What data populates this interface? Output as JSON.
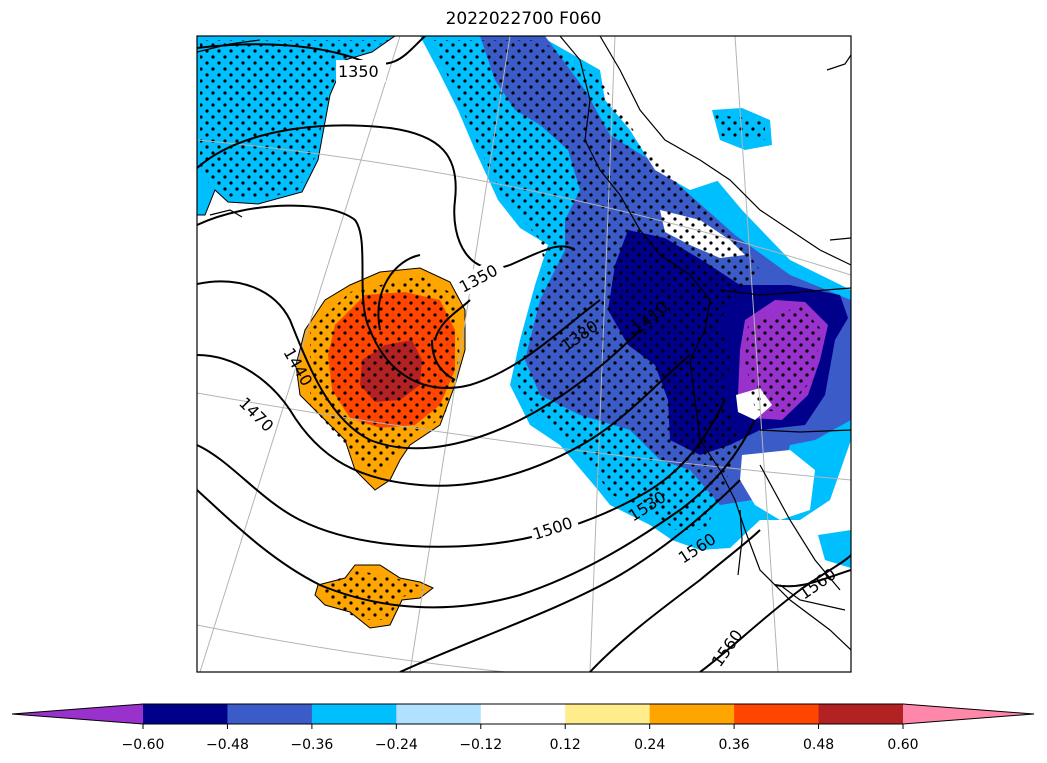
{
  "title": "2022022700 F060",
  "contour_labels": [
    "1350",
    "1350",
    "1380",
    "1410",
    "1440",
    "1470",
    "1500",
    "1530",
    "1560",
    "1560",
    "1560"
  ],
  "colorbar": {
    "colors": [
      "#9932cc",
      "#00008b",
      "#3a5bc8",
      "#00bfff",
      "#b0e2ff",
      "#ffffff",
      "#ffec8b",
      "#ffa500",
      "#ff4500",
      "#b22222",
      "#ff88aa"
    ],
    "ticks": [
      "−0.60",
      "−0.48",
      "−0.36",
      "−0.24",
      "−0.12",
      "0.12",
      "0.24",
      "0.36",
      "0.48",
      "0.60"
    ],
    "extend": "both"
  },
  "colors": {
    "contour": "#000000",
    "coast": "#000000",
    "grid": "#b4b4b4",
    "stipple": "#000000"
  }
}
